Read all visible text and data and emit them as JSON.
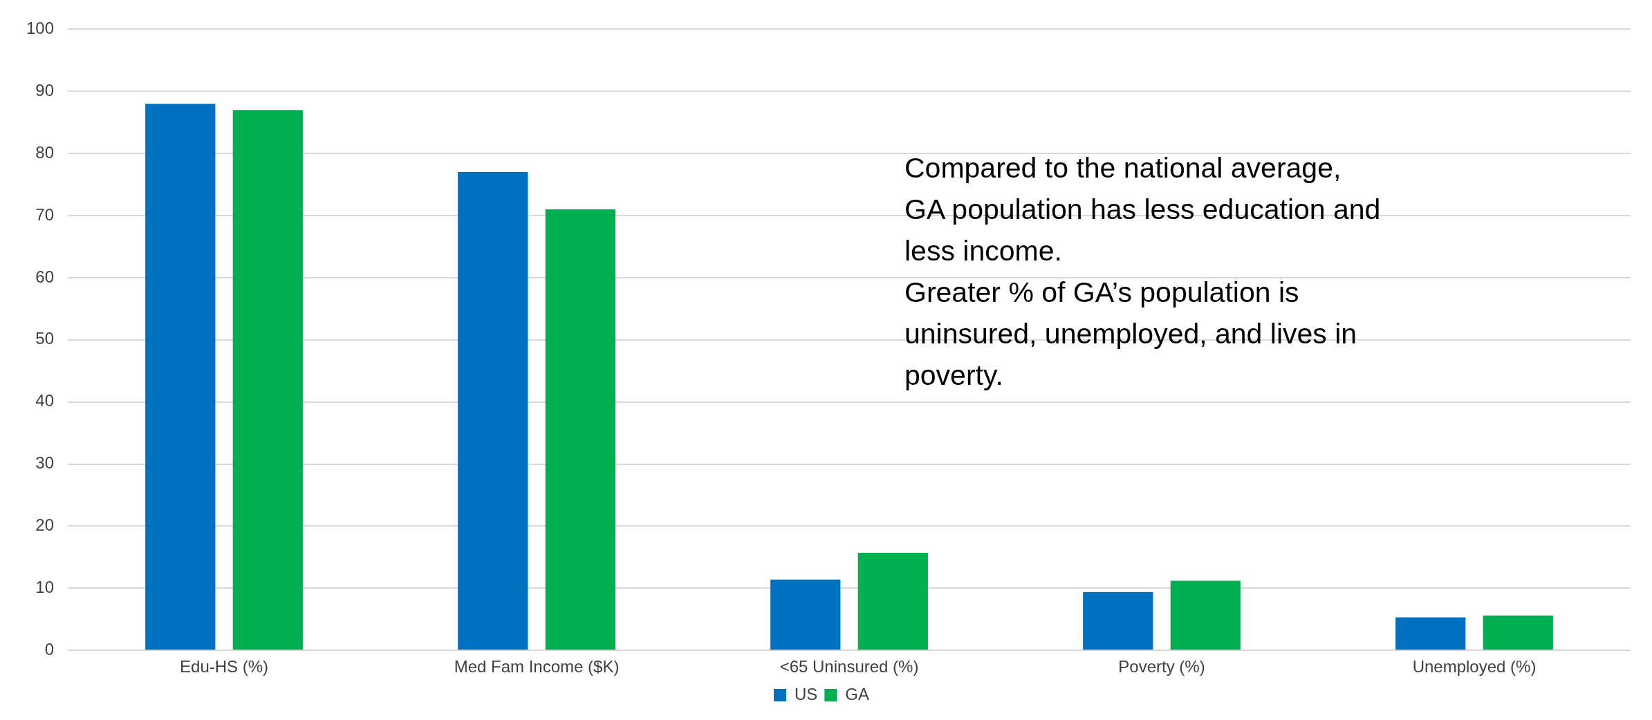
{
  "chart_data": {
    "type": "bar",
    "categories": [
      "Edu-HS (%)",
      "Med Fam Income ($K)",
      "<65 Uninsured (%)",
      "Poverty (%)",
      "Unemployed (%)"
    ],
    "series": [
      {
        "name": "US",
        "color": "#0070c0",
        "values": [
          88,
          77,
          11.4,
          9.4,
          5.3
        ]
      },
      {
        "name": "GA",
        "color": "#00b050",
        "values": [
          87,
          71,
          15.7,
          11.2,
          5.6
        ]
      }
    ],
    "ylim": [
      0,
      100
    ],
    "yticks": [
      0,
      10,
      20,
      30,
      40,
      50,
      60,
      70,
      80,
      90,
      100
    ],
    "grid": "y",
    "legend": "bottom",
    "annotations": [
      "Compared to the national average,\nGA population has less education and\nless income.\nGreater % of GA’s population is\nuninsured, unemployed, and lives in\npoverty."
    ]
  }
}
